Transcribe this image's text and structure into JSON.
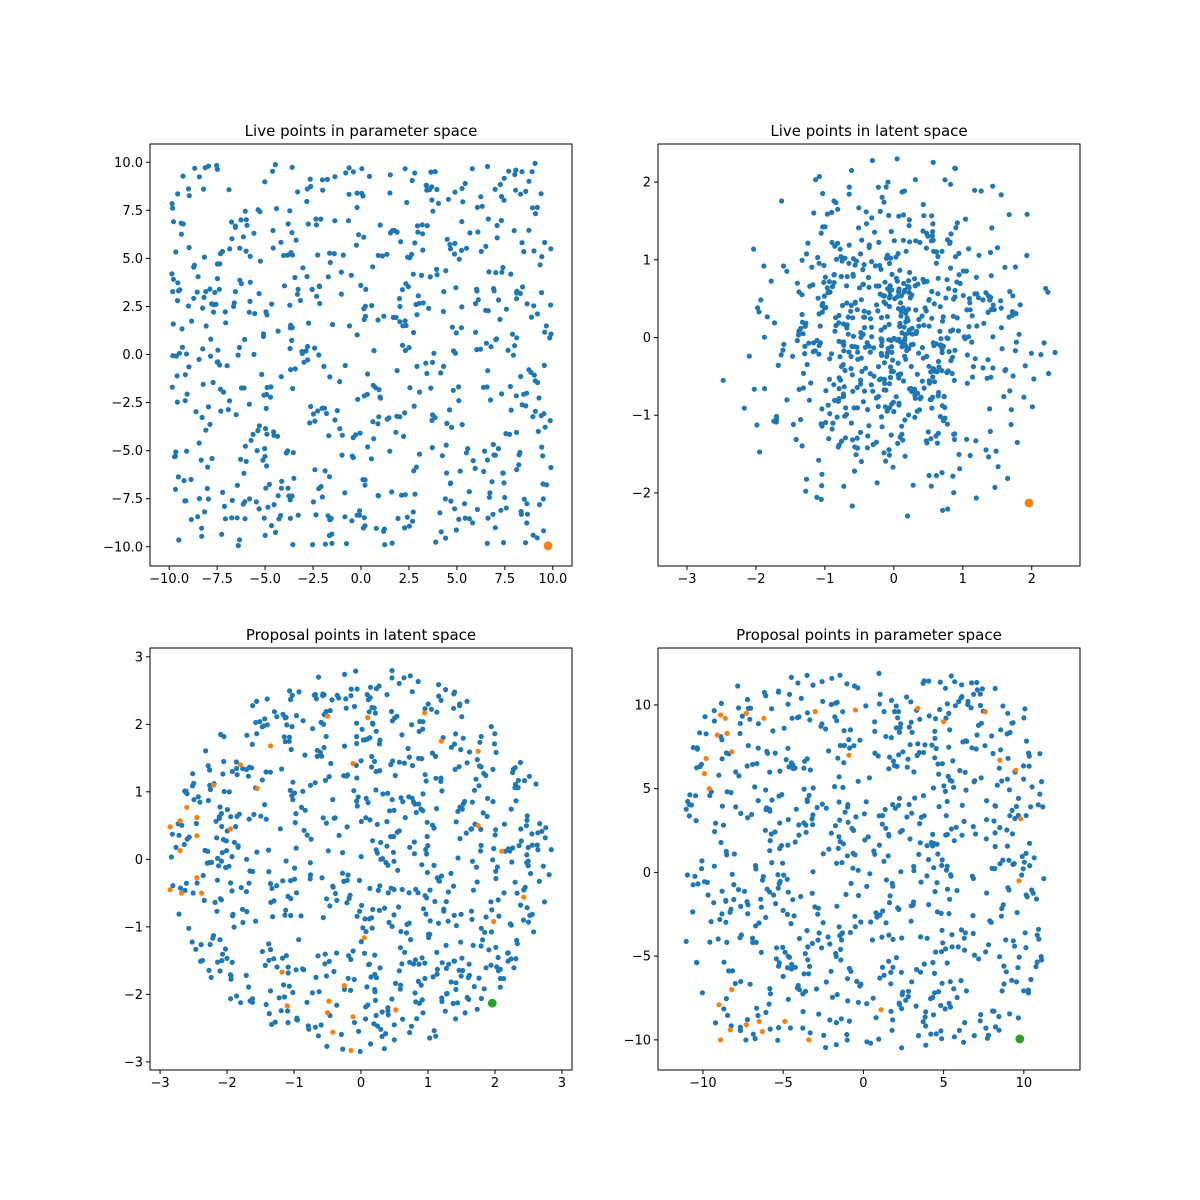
{
  "chart_data": [
    {
      "type": "scatter",
      "title": "Live points in parameter space",
      "xlim": [
        -11,
        11
      ],
      "ylim": [
        -11,
        10.95
      ],
      "xticks": [
        -10.0,
        -7.5,
        -5.0,
        -2.5,
        0.0,
        2.5,
        5.0,
        7.5,
        10.0
      ],
      "xtick_labels": [
        "−10.0",
        "−7.5",
        "−5.0",
        "−2.5",
        "0.0",
        "2.5",
        "5.0",
        "7.5",
        "10.0"
      ],
      "yticks": [
        -10.0,
        -7.5,
        -5.0,
        -2.5,
        0.0,
        2.5,
        5.0,
        7.5,
        10.0
      ],
      "ytick_labels": [
        "−10.0",
        "−7.5",
        "−5.0",
        "−2.5",
        "0.0",
        "2.5",
        "5.0",
        "7.5",
        "10.0"
      ],
      "series": [
        {
          "color": "#1f77b4",
          "marker_size": "small",
          "distribution": {
            "shape": "uniform-square",
            "center": [
              0,
              0
            ],
            "halfwidth": 9.95,
            "n": 700
          }
        },
        {
          "color": "#ff7f0e",
          "marker_size": "large",
          "points": [
            [
              9.75,
              -9.95
            ]
          ]
        }
      ]
    },
    {
      "type": "scatter",
      "title": "Live points in latent space",
      "xlim": [
        -3.42,
        2.7
      ],
      "ylim": [
        -2.94,
        2.49
      ],
      "xticks": [
        -3,
        -2,
        -1,
        0,
        1,
        2
      ],
      "xtick_labels": [
        "−3",
        "−2",
        "−1",
        "0",
        "1",
        "2"
      ],
      "yticks": [
        -2,
        -1,
        0,
        1,
        2
      ],
      "ytick_labels": [
        "−2",
        "−1",
        "0",
        "1",
        "2"
      ],
      "series": [
        {
          "color": "#1f77b4",
          "marker_size": "small",
          "distribution": {
            "shape": "gaussian-blob",
            "center": [
              0.05,
              0.0
            ],
            "sigma": [
              0.9,
              0.95
            ],
            "n": 700
          }
        },
        {
          "color": "#ff7f0e",
          "marker_size": "large",
          "points": [
            [
              1.96,
              -2.13
            ]
          ]
        }
      ]
    },
    {
      "type": "scatter",
      "title": "Proposal points in latent space",
      "xlim": [
        -3.15,
        3.15
      ],
      "ylim": [
        -3.12,
        3.13
      ],
      "xticks": [
        -3,
        -2,
        -1,
        0,
        1,
        2,
        3
      ],
      "xtick_labels": [
        "−3",
        "−2",
        "−1",
        "0",
        "1",
        "2",
        "3"
      ],
      "yticks": [
        -3,
        -2,
        -1,
        0,
        1,
        2,
        3
      ],
      "ytick_labels": [
        "−3",
        "−2",
        "−1",
        "0",
        "1",
        "2",
        "3"
      ],
      "series": [
        {
          "color": "#1f77b4",
          "marker_size": "small",
          "distribution": {
            "shape": "uniform-disk",
            "center": [
              0,
              0
            ],
            "radius": 2.85,
            "n": 780
          }
        },
        {
          "color": "#ff7f0e",
          "marker_size": "small",
          "points": [
            [
              -2.85,
              0.48
            ],
            [
              -2.7,
              0.57
            ],
            [
              -2.6,
              0.77
            ],
            [
              -2.45,
              0.62
            ],
            [
              -2.7,
              0.13
            ],
            [
              -2.45,
              0.35
            ],
            [
              -2.85,
              -0.45
            ],
            [
              -2.68,
              -0.5
            ],
            [
              -2.45,
              -0.27
            ],
            [
              -2.38,
              -0.5
            ],
            [
              -2.2,
              1.1
            ],
            [
              -1.95,
              0.45
            ],
            [
              -1.8,
              1.4
            ],
            [
              -1.55,
              1.05
            ],
            [
              -1.35,
              1.68
            ],
            [
              -1.18,
              -1.67
            ],
            [
              -1.1,
              -2.17
            ],
            [
              -0.5,
              2.12
            ],
            [
              -0.12,
              1.42
            ],
            [
              0.1,
              2.1
            ],
            [
              0.95,
              2.17
            ],
            [
              1.2,
              1.75
            ],
            [
              1.75,
              1.6
            ],
            [
              1.75,
              0.5
            ],
            [
              2.1,
              0.12
            ],
            [
              1.98,
              -0.92
            ],
            [
              2.43,
              -0.56
            ],
            [
              -0.48,
              -2.1
            ],
            [
              -0.5,
              -2.27
            ],
            [
              -0.42,
              -2.56
            ],
            [
              -0.25,
              -1.87
            ],
            [
              -0.12,
              -2.33
            ],
            [
              -0.15,
              -2.83
            ],
            [
              0.05,
              -1.16
            ],
            [
              0.52,
              -2.23
            ]
          ]
        },
        {
          "color": "#2ca02c",
          "marker_size": "large",
          "points": [
            [
              1.96,
              -2.13
            ]
          ]
        }
      ]
    },
    {
      "type": "scatter",
      "title": "Proposal points in parameter space",
      "xlim": [
        -12.8,
        13.5
      ],
      "ylim": [
        -11.8,
        13.4
      ],
      "xticks": [
        -10,
        -5,
        0,
        5,
        10
      ],
      "xtick_labels": [
        "−10",
        "−5",
        "0",
        "5",
        "10"
      ],
      "yticks": [
        -10,
        -5,
        0,
        5,
        10
      ],
      "ytick_labels": [
        "−10",
        "−5",
        "0",
        "5",
        "10"
      ],
      "series": [
        {
          "color": "#1f77b4",
          "marker_size": "small",
          "distribution": {
            "shape": "rounded-square",
            "center": [
              0.1,
              0.7
            ],
            "halfwidth": 11.2,
            "n": 780
          }
        },
        {
          "color": "#ff7f0e",
          "marker_size": "small",
          "points": [
            [
              -8.9,
              9.4
            ],
            [
              -8.6,
              9.2
            ],
            [
              -8.5,
              8.3
            ],
            [
              -9.1,
              8.2
            ],
            [
              -9.8,
              6.8
            ],
            [
              -9.9,
              5.9
            ],
            [
              -9.6,
              5.0
            ],
            [
              -8.2,
              7.2
            ],
            [
              -7.3,
              9.5
            ],
            [
              -6.2,
              9.2
            ],
            [
              -3.0,
              9.6
            ],
            [
              -0.5,
              9.7
            ],
            [
              3.4,
              9.8
            ],
            [
              5.0,
              9.0
            ],
            [
              7.6,
              9.6
            ],
            [
              8.5,
              6.7
            ],
            [
              9.5,
              6.1
            ],
            [
              9.8,
              3.2
            ],
            [
              9.7,
              -0.5
            ],
            [
              -0.9,
              7.0
            ],
            [
              1.1,
              -8.2
            ],
            [
              -9.0,
              -7.9
            ],
            [
              -8.9,
              -10.0
            ],
            [
              -8.2,
              -7.0
            ],
            [
              -8.3,
              -9.4
            ],
            [
              -7.3,
              -9.1
            ],
            [
              -6.3,
              -9.5
            ],
            [
              -6.5,
              -8.9
            ],
            [
              -4.9,
              -8.9
            ],
            [
              -3.4,
              -10.0
            ]
          ]
        },
        {
          "color": "#2ca02c",
          "marker_size": "large",
          "points": [
            [
              9.75,
              -9.95
            ]
          ]
        }
      ]
    }
  ]
}
